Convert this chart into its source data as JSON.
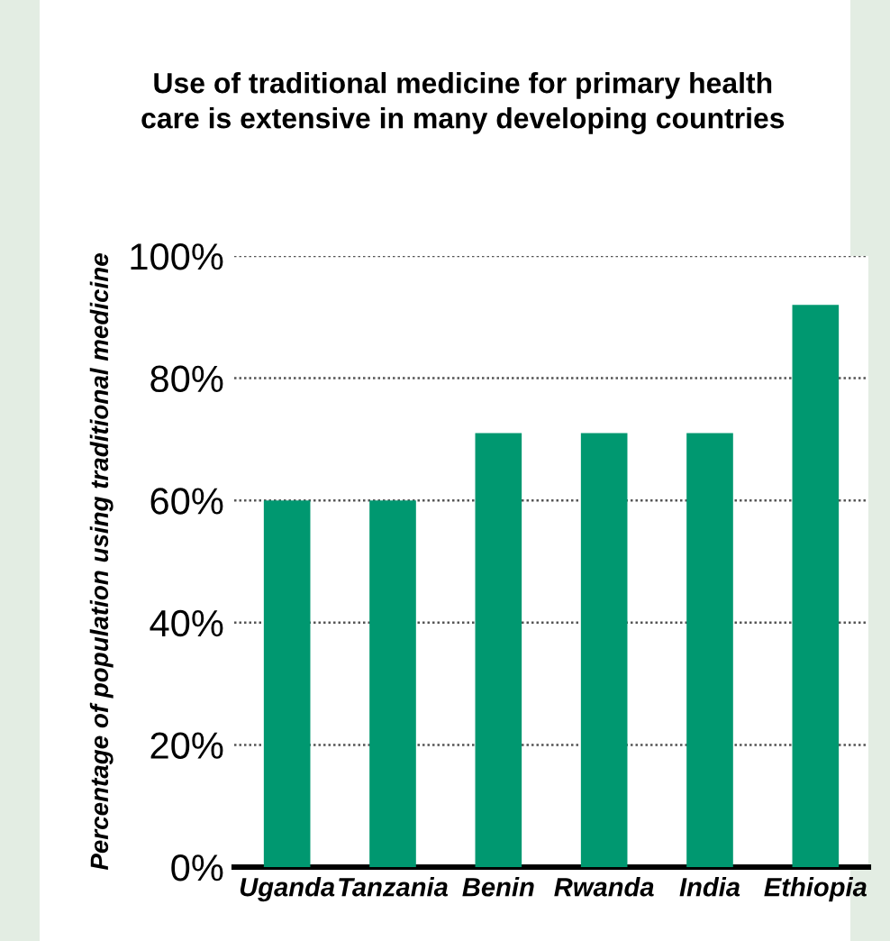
{
  "chart_data": {
    "type": "bar",
    "title": "Use of traditional medicine for primary health\ncare is extensive in many developing countries",
    "ylabel": "Percentage of population using traditional medicine",
    "categories": [
      "Uganda",
      "Tanzania",
      "Benin",
      "Rwanda",
      "India",
      "Ethiopia"
    ],
    "values": [
      60,
      60,
      71,
      71,
      71,
      92
    ],
    "color": "#009870",
    "ylim": [
      0,
      100
    ],
    "yticks": [
      {
        "value": 0,
        "label": "0%"
      },
      {
        "value": 20,
        "label": "20%"
      },
      {
        "value": 40,
        "label": "40%"
      },
      {
        "value": 60,
        "label": "60%"
      },
      {
        "value": 80,
        "label": "80%"
      },
      {
        "value": 100,
        "label": "100%"
      }
    ],
    "grid": "y"
  }
}
